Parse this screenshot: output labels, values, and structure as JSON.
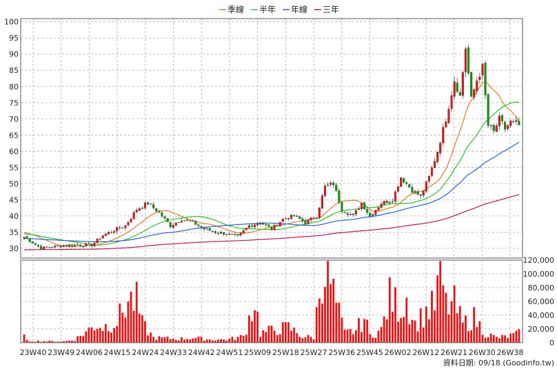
{
  "chart_data": {
    "type": "candlestick-with-volume",
    "legend": [
      {
        "name": "季線",
        "color": "#e07b20"
      },
      {
        "name": "半年",
        "color": "#22c41f"
      },
      {
        "name": "年線",
        "color": "#2060dd"
      },
      {
        "name": "三年",
        "color": "#c0105a"
      }
    ],
    "legend_placement": "top-center",
    "grid": true,
    "colors": {
      "up": "#e01818",
      "down": "#0a9a0a",
      "volume": "#e01818",
      "grid": "#a8a8a8"
    },
    "x_tick_labels": [
      "23W40",
      "23W49",
      "24W06",
      "24W15",
      "24W24",
      "24W33",
      "24W42",
      "24W51",
      "25W09",
      "25W18",
      "25W27",
      "25W36",
      "25W45",
      "26W02",
      "26W12",
      "26W21",
      "26W30",
      "26W38"
    ],
    "price_axis": {
      "ylim": [
        27,
        101
      ],
      "ticks": [
        30,
        35,
        40,
        45,
        50,
        55,
        60,
        65,
        70,
        75,
        80,
        85,
        90,
        95,
        100
      ]
    },
    "volume_axis": {
      "ylim": [
        0,
        120000
      ],
      "ticks": [
        {
          "value": 0,
          "label": "0"
        },
        {
          "value": 20000,
          "label": "20,000"
        },
        {
          "value": 40000,
          "label": "40,000"
        },
        {
          "value": 60000,
          "label": "60,000"
        },
        {
          "value": 80000,
          "label": "80,000"
        },
        {
          "value": 100000,
          "label": "100,000"
        },
        {
          "value": 120000,
          "label": "120,000"
        }
      ]
    },
    "price_anchors": [
      {
        "week": 0,
        "close": 33.5
      },
      {
        "week": 6,
        "close": 30
      },
      {
        "week": 15,
        "close": 31
      },
      {
        "week": 24,
        "close": 31
      },
      {
        "week": 28,
        "close": 34
      },
      {
        "week": 33,
        "close": 36
      },
      {
        "week": 36,
        "close": 37
      },
      {
        "week": 40,
        "close": 42
      },
      {
        "week": 44,
        "close": 44
      },
      {
        "week": 48,
        "close": 41
      },
      {
        "week": 52,
        "close": 37
      },
      {
        "week": 56,
        "close": 39
      },
      {
        "week": 60,
        "close": 38
      },
      {
        "week": 64,
        "close": 36
      },
      {
        "week": 68,
        "close": 35
      },
      {
        "week": 72,
        "close": 34.5
      },
      {
        "week": 76,
        "close": 33.5
      },
      {
        "week": 80,
        "close": 37
      },
      {
        "week": 84,
        "close": 38
      },
      {
        "week": 88,
        "close": 36
      },
      {
        "week": 92,
        "close": 39
      },
      {
        "week": 96,
        "close": 40
      },
      {
        "week": 100,
        "close": 38
      },
      {
        "week": 104,
        "close": 40
      },
      {
        "week": 107,
        "close": 49
      },
      {
        "week": 110,
        "close": 50
      },
      {
        "week": 113,
        "close": 42
      },
      {
        "week": 117,
        "close": 40
      },
      {
        "week": 120,
        "close": 44
      },
      {
        "week": 123,
        "close": 40
      },
      {
        "week": 127,
        "close": 44
      },
      {
        "week": 131,
        "close": 45
      },
      {
        "week": 134,
        "close": 52
      },
      {
        "week": 138,
        "close": 48
      },
      {
        "week": 141,
        "close": 46
      },
      {
        "week": 144,
        "close": 52
      },
      {
        "week": 147,
        "close": 60
      },
      {
        "week": 150,
        "close": 70
      },
      {
        "week": 153,
        "close": 82
      },
      {
        "week": 155,
        "close": 77
      },
      {
        "week": 157,
        "close": 92
      },
      {
        "week": 159,
        "close": 76
      },
      {
        "week": 161,
        "close": 82
      },
      {
        "week": 163,
        "close": 86
      },
      {
        "week": 165,
        "close": 68
      },
      {
        "week": 167,
        "close": 66
      },
      {
        "week": 169,
        "close": 70
      },
      {
        "week": 171,
        "close": 67
      },
      {
        "week": 173,
        "close": 69
      },
      {
        "week": 176,
        "close": 68
      }
    ],
    "volume_anchors": [
      {
        "week": 0,
        "value": 10000
      },
      {
        "week": 1,
        "value": 3000
      },
      {
        "week": 14,
        "value": 2000
      },
      {
        "week": 18,
        "value": 5000
      },
      {
        "week": 26,
        "value": 30000
      },
      {
        "week": 28,
        "value": 25000
      },
      {
        "week": 33,
        "value": 35000
      },
      {
        "week": 37,
        "value": 68000
      },
      {
        "week": 40,
        "value": 66000
      },
      {
        "week": 42,
        "value": 30000
      },
      {
        "week": 46,
        "value": 8000
      },
      {
        "week": 55,
        "value": 6000
      },
      {
        "week": 60,
        "value": 8000
      },
      {
        "week": 66,
        "value": 5000
      },
      {
        "week": 72,
        "value": 5000
      },
      {
        "week": 78,
        "value": 10000
      },
      {
        "week": 82,
        "value": 69000
      },
      {
        "week": 84,
        "value": 15000
      },
      {
        "week": 88,
        "value": 20000
      },
      {
        "week": 94,
        "value": 25000
      },
      {
        "week": 99,
        "value": 10000
      },
      {
        "week": 103,
        "value": 8000
      },
      {
        "week": 106,
        "value": 122000
      },
      {
        "week": 108,
        "value": 115000
      },
      {
        "week": 111,
        "value": 60000
      },
      {
        "week": 114,
        "value": 15000
      },
      {
        "week": 118,
        "value": 20000
      },
      {
        "week": 121,
        "value": 40000
      },
      {
        "week": 123,
        "value": 12000
      },
      {
        "week": 127,
        "value": 20000
      },
      {
        "week": 130,
        "value": 72000
      },
      {
        "week": 134,
        "value": 55000
      },
      {
        "week": 136,
        "value": 72000
      },
      {
        "week": 139,
        "value": 30000
      },
      {
        "week": 143,
        "value": 50000
      },
      {
        "week": 146,
        "value": 60000
      },
      {
        "week": 148,
        "value": 118000
      },
      {
        "week": 150,
        "value": 60000
      },
      {
        "week": 153,
        "value": 62000
      },
      {
        "week": 156,
        "value": 30000
      },
      {
        "week": 160,
        "value": 40000
      },
      {
        "week": 164,
        "value": 15000
      },
      {
        "week": 168,
        "value": 8000
      },
      {
        "week": 172,
        "value": 10000
      },
      {
        "week": 176,
        "value": 15000
      }
    ],
    "week_count": 177,
    "ma_periods": {
      "季線": 13,
      "半年": 26,
      "年線": 52,
      "三年": 156
    },
    "footer": "資料日期: 09/18  (Goodinfo.tw)"
  }
}
